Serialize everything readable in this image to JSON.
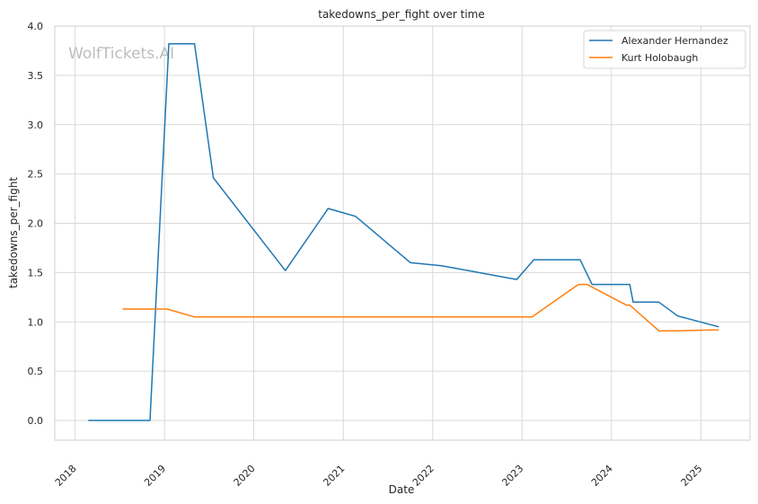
{
  "chart_data": {
    "type": "line",
    "title": "takedowns_per_fight over time",
    "xlabel": "Date",
    "ylabel": "takedowns_per_fight",
    "watermark": "WolfTickets.AI",
    "xlim": [
      "2017-10-10",
      "2025-07-20"
    ],
    "ylim": [
      -0.2,
      4.0
    ],
    "x_ticks": [
      "2018-01-01",
      "2019-01-01",
      "2020-01-01",
      "2021-01-01",
      "2022-01-01",
      "2023-01-01",
      "2024-01-01",
      "2025-01-01"
    ],
    "x_tick_labels": [
      "2018",
      "2019",
      "2020",
      "2021",
      "2022",
      "2023",
      "2024",
      "2025"
    ],
    "y_ticks": [
      0.0,
      0.5,
      1.0,
      1.5,
      2.0,
      2.5,
      3.0,
      3.5,
      4.0
    ],
    "y_tick_labels": [
      "0.0",
      "0.5",
      "1.0",
      "1.5",
      "2.0",
      "2.5",
      "3.0",
      "3.5",
      "4.0"
    ],
    "grid": true,
    "legend_position": "top-right",
    "series": [
      {
        "name": "Alexander Hernandez",
        "color": "#1f77b4",
        "points": [
          [
            "2018-02-24",
            0.0
          ],
          [
            "2018-11-03",
            0.0
          ],
          [
            "2019-01-19",
            3.82
          ],
          [
            "2019-05-04",
            3.82
          ],
          [
            "2019-07-20",
            2.46
          ],
          [
            "2020-05-09",
            1.52
          ],
          [
            "2020-10-31",
            2.15
          ],
          [
            "2021-02-20",
            2.07
          ],
          [
            "2021-10-02",
            1.6
          ],
          [
            "2022-02-05",
            1.57
          ],
          [
            "2022-12-10",
            1.43
          ],
          [
            "2023-02-18",
            1.63
          ],
          [
            "2023-08-26",
            1.63
          ],
          [
            "2023-10-14",
            1.38
          ],
          [
            "2024-03-16",
            1.38
          ],
          [
            "2024-03-30",
            1.2
          ],
          [
            "2024-07-13",
            1.2
          ],
          [
            "2024-09-28",
            1.06
          ],
          [
            "2025-03-15",
            0.95
          ]
        ]
      },
      {
        "name": "Kurt Holobaugh",
        "color": "#ff7f0e",
        "points": [
          [
            "2018-07-14",
            1.13
          ],
          [
            "2019-01-12",
            1.13
          ],
          [
            "2019-05-04",
            1.05
          ],
          [
            "2023-02-11",
            1.05
          ],
          [
            "2023-08-19",
            1.38
          ],
          [
            "2023-09-23",
            1.38
          ],
          [
            "2024-03-02",
            1.17
          ],
          [
            "2024-03-16",
            1.17
          ],
          [
            "2024-07-13",
            0.91
          ],
          [
            "2024-09-28",
            0.91
          ],
          [
            "2025-03-15",
            0.92
          ]
        ]
      }
    ]
  }
}
